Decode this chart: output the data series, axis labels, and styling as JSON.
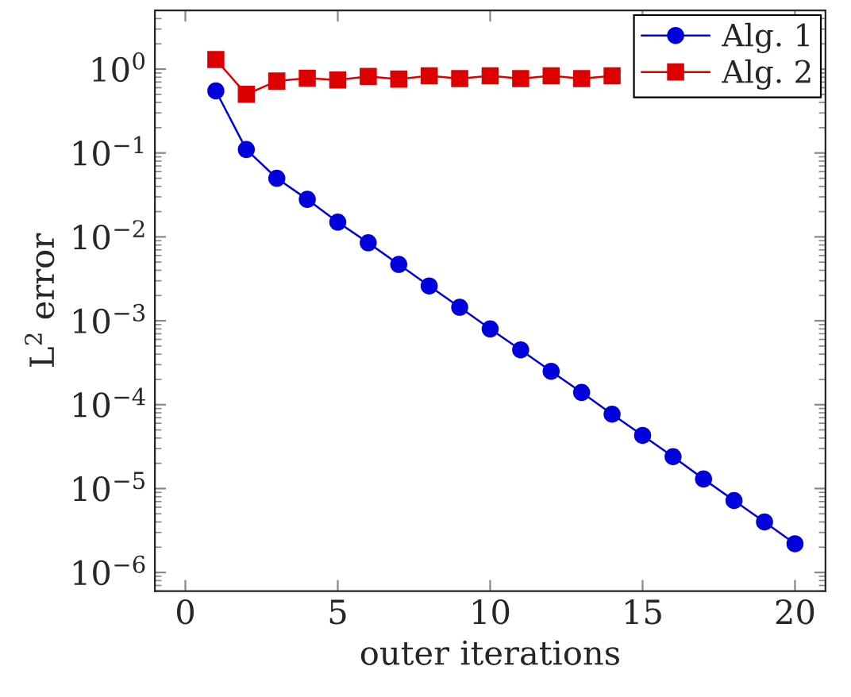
{
  "chart_data": {
    "type": "line",
    "xlabel": "outer iterations",
    "ylabel": "L$^{2}$ error",
    "log": "y",
    "x": [
      1,
      2,
      3,
      4,
      5,
      6,
      7,
      8,
      9,
      10,
      11,
      12,
      13,
      14,
      15,
      16,
      17,
      18,
      19,
      20
    ],
    "series": [
      {
        "name": "Alg. 1",
        "color": "#0000dd",
        "marker": "circle",
        "values": [
          0.55,
          0.11,
          0.05,
          0.028,
          0.015,
          0.0085,
          0.0047,
          0.0026,
          0.00145,
          0.0008,
          0.00045,
          0.00025,
          0.00014,
          7.7e-05,
          4.3e-05,
          2.4e-05,
          1.3e-05,
          7.2e-06,
          4e-06,
          2.2e-06
        ]
      },
      {
        "name": "Alg. 2",
        "color": "#dd0000",
        "marker": "square",
        "values": [
          1.3,
          0.5,
          0.72,
          0.78,
          0.74,
          0.82,
          0.76,
          0.83,
          0.77,
          0.83,
          0.77,
          0.83,
          0.77,
          0.83,
          null,
          null,
          null,
          null,
          null,
          null
        ]
      }
    ],
    "xlim": [
      -1,
      21
    ],
    "xticks": [
      0,
      5,
      10,
      15,
      20
    ],
    "ylim": [
      6e-07,
      5
    ],
    "yticks": [
      {
        "value": 1e-06,
        "label": "10$^{−6}$"
      },
      {
        "value": 1e-05,
        "label": "10$^{−5}$"
      },
      {
        "value": 0.0001,
        "label": "10$^{−4}$"
      },
      {
        "value": 0.001,
        "label": "10$^{−3}$"
      },
      {
        "value": 0.01,
        "label": "10$^{−2}$"
      },
      {
        "value": 0.1,
        "label": "10$^{−1}$"
      },
      {
        "value": 1,
        "label": "10$^{0}$"
      }
    ],
    "grid": false,
    "legend": "top right",
    "line_style": "solid"
  }
}
